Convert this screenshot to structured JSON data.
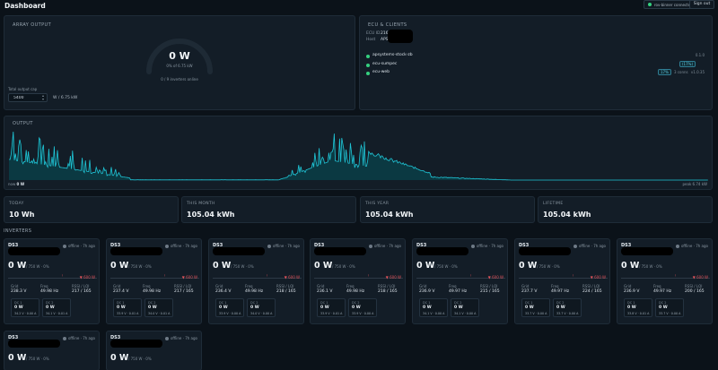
{
  "header": {
    "title": "Dashboard",
    "connection_status": "rov-binner connected",
    "sign_out_label": "Sign out"
  },
  "array_output": {
    "title": "ARRAY OUTPUT",
    "value": "0 W",
    "percent_of_capacity": "0% of 6.75 kW",
    "inverters_online": "0 / 9 inverters online",
    "total_limit_label": "Total output cap",
    "total_limit_value": "5400",
    "total_limit_unit": "W / 6.75 kW",
    "gauge_fraction": 0
  },
  "ecu": {
    "title": "ECU & CLIENTS",
    "ecu_id_key": "ECU ID",
    "ecu_id_value": "2162",
    "host_key": "Host",
    "host_value": "APS-ECU",
    "clients": [
      {
        "name": "apsystems-stock-zb",
        "badge": "",
        "meta": "",
        "version": "0.1.0"
      },
      {
        "name": "ecu-sumpec",
        "badge": "(17%)",
        "meta": "",
        "version": ""
      },
      {
        "name": "ecu-web",
        "badge": "17%",
        "meta": "3 conns",
        "version": "v1.0.35"
      }
    ]
  },
  "output_chart": {
    "title": "OUTPUT",
    "now_label": "now",
    "now_value": "0 W",
    "peak_label": "peak 6.74 kW"
  },
  "stats": [
    {
      "label": "TODAY",
      "value": "10 Wh"
    },
    {
      "label": "THIS MONTH",
      "value": "105.04 kWh"
    },
    {
      "label": "THIS YEAR",
      "value": "105.04 kWh"
    },
    {
      "label": "LIFETIME",
      "value": "105.04 kWh"
    }
  ],
  "inverters": {
    "title": "INVERTERS",
    "common": {
      "model": "DS3",
      "status": "offline · 7h ago",
      "power": "0 W",
      "power_sub": "/ 750 W · 0%",
      "limit": "▼ 600 W",
      "grid_label": "Grid",
      "freq_label": "Freq",
      "rssi_label": "RSSI / LQI",
      "dc1_label": "DC 1",
      "dc2_label": "DC 2",
      "dc_power": "0 W"
    },
    "cards": [
      {
        "grid": "238.3 V",
        "freq": "49.98 Hz",
        "rssi": "217 / 165",
        "dc1": "34.2 V · 0.00 A",
        "dc2": "34.1 V · 0.01 A"
      },
      {
        "grid": "237.4 V",
        "freq": "49.98 Hz",
        "rssi": "217 / 165",
        "dc1": "33.9 V · 0.01 A",
        "dc2": "34.0 V · 0.01 A"
      },
      {
        "grid": "236.4 V",
        "freq": "49.98 Hz",
        "rssi": "218 / 165",
        "dc1": "33.9 V · 0.00 A",
        "dc2": "34.0 V · 0.00 A"
      },
      {
        "grid": "236.1 V",
        "freq": "49.98 Hz",
        "rssi": "218 / 165",
        "dc1": "33.9 V · 0.01 A",
        "dc2": "33.9 V · 0.00 A"
      },
      {
        "grid": "236.9 V",
        "freq": "49.97 Hz",
        "rssi": "215 / 165",
        "dc1": "34.1 V · 0.00 A",
        "dc2": "34.1 V · 0.00 A"
      },
      {
        "grid": "237.7 V",
        "freq": "49.97 Hz",
        "rssi": "224 / 165",
        "dc1": "33.7 V · 0.00 A",
        "dc2": "33.7 V · 0.00 A"
      },
      {
        "grid": "236.9 V",
        "freq": "49.97 Hz",
        "rssi": "200 / 165",
        "dc1": "33.8 V · 0.01 A",
        "dc2": "33.7 V · 0.00 A"
      },
      {
        "grid": "",
        "freq": "",
        "rssi": "",
        "dc1": "",
        "dc2": ""
      },
      {
        "grid": "",
        "freq": "",
        "rssi": "",
        "dc1": "",
        "dc2": ""
      }
    ]
  },
  "colors": {
    "accent": "#1fc5d6",
    "ok": "#35d07f",
    "offline": "#6e7a86",
    "limit": "#e0525a"
  }
}
